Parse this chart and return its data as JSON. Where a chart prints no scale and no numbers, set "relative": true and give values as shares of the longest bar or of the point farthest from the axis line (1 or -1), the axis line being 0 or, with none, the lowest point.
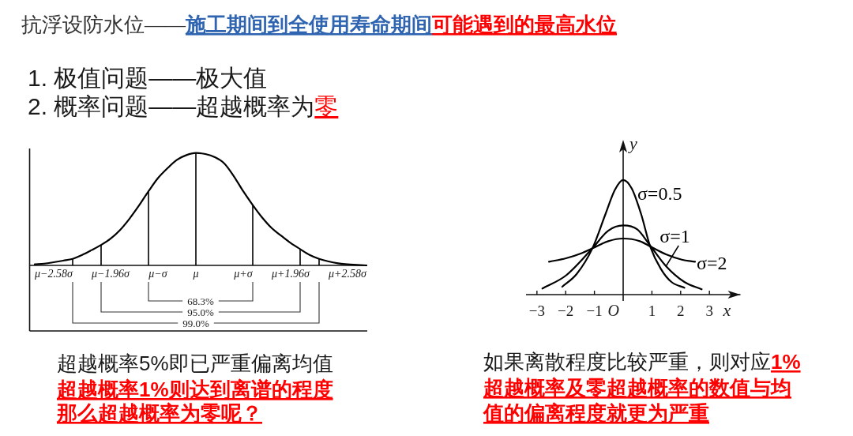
{
  "chart_data": [
    {
      "type": "line",
      "relative": true,
      "marker": "none",
      "categories": [
        null,
        null,
        "μ−2.58σ",
        null,
        null,
        null,
        null,
        null,
        "μ−1.96σ",
        null,
        null,
        null,
        null,
        "μ−σ",
        null,
        null,
        null,
        "μ",
        null,
        null,
        null,
        null,
        "μ+σ",
        null,
        null,
        null,
        null,
        "μ+1.96σ",
        null,
        null,
        null,
        null,
        null,
        "μ+2.58σ",
        null,
        null
      ],
      "series": [
        {
          "color": "#000000",
          "values": [
            0.009,
            0.016,
            0.028,
            0.042,
            0.058,
            0.093,
            0.136,
            0.182,
            0.238,
            0.315,
            0.416,
            0.533,
            0.659,
            0.776,
            0.864,
            0.939,
            0.981,
            1,
            0.991,
            0.963,
            0.907,
            0.794,
            0.659,
            0.537,
            0.425,
            0.332,
            0.264,
            0.199,
            0.145,
            0.093,
            0.058,
            0.035,
            0.019,
            0.009,
            0.005,
            0
          ]
        },
        {
          "type": "bar",
          "color": "#000000",
          "values": [
            null,
            null,
            null,
            null,
            0.058,
            null,
            null,
            0.182,
            null,
            null,
            null,
            null,
            0.659,
            null,
            null,
            null,
            null,
            1,
            null,
            null,
            null,
            null,
            null,
            0.537,
            null,
            null,
            null,
            null,
            0.145,
            null,
            0.058,
            null,
            null,
            null,
            null,
            null
          ]
        }
      ],
      "annotations": [
        "抗浮设防水位——",
        "施工期间到全使用寿命期间",
        "可能遇到的最高水位",
        "1. 极值问题——极大值",
        "2. 概率问题——超越概率为",
        "零",
        "68.3%",
        "95.0%",
        "99.0%",
        "超越概率5%即已严重偏离均值",
        "超越概率1%则达到离谱的程度",
        "那么超越概率为零呢？"
      ]
    },
    {
      "type": "line",
      "relative": true,
      "marker": "none",
      "xlim": [
        -3.38,
        4.08
      ],
      "xticks": [
        {
          "value": -3,
          "label": "−3"
        },
        {
          "value": -2,
          "label": "−2"
        },
        {
          "value": -1,
          "label": "−1"
        },
        1,
        2,
        3
      ],
      "xlabel": "x",
      "ylabel": "y",
      "series": [
        {
          "name": "σ=0.5",
          "color": "#000000",
          "x": [
            -2.12,
            -1.62,
            -1.07,
            -0.61,
            -0.29,
            0,
            0.3,
            0.62,
            0.94,
            1.31,
            1.68,
            2.13
          ],
          "values": [
            0.069,
            0.179,
            0.404,
            0.706,
            0.913,
            1,
            0.924,
            0.706,
            0.42,
            0.225,
            0.11,
            0.06
          ]
        },
        {
          "name": "σ=1",
          "color": "#000000",
          "x": [
            -2.81,
            -1.99,
            -1.07,
            -0.52,
            0,
            0.49,
            0.94,
            1.49,
            2.13,
            2.73
          ],
          "values": [
            0.053,
            0.167,
            0.404,
            0.557,
            0.603,
            0.569,
            0.427,
            0.248,
            0.11,
            0.046
          ]
        },
        {
          "name": "σ=2",
          "color": "#000000",
          "x": [
            -2.58,
            -1.99,
            -1.44,
            -1.07,
            -0.52,
            0,
            0.58,
            0.94,
            1.49,
            2.04,
            2.5
          ],
          "values": [
            0.287,
            0.317,
            0.362,
            0.404,
            0.466,
            0.489,
            0.466,
            0.42,
            0.351,
            0.305,
            0.287
          ]
        }
      ],
      "annotations": [
        "O",
        "如果离散程度比较严重，则对应",
        "1%",
        "超越概率及零超越概率的数值与均",
        "值的偏离程度就更为严重"
      ]
    }
  ]
}
